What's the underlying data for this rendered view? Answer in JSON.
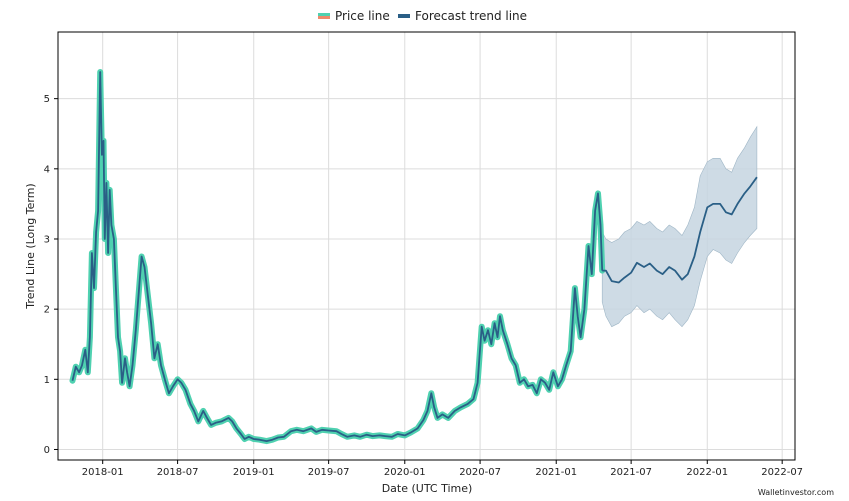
{
  "chart_data": {
    "type": "line",
    "title": "",
    "xlabel": "Date (UTC Time)",
    "ylabel": "Trend Line (Long Term)",
    "xlim": [
      "2017-09-15",
      "2022-08-01"
    ],
    "ylim": [
      -0.15,
      5.95
    ],
    "grid": true,
    "legend_position": "top-center",
    "x_ticks": [
      "2018-01",
      "2018-07",
      "2019-01",
      "2019-07",
      "2020-01",
      "2020-07",
      "2021-01",
      "2021-07",
      "2022-01",
      "2022-07"
    ],
    "y_ticks": [
      0,
      1,
      2,
      3,
      4,
      5
    ],
    "series": [
      {
        "name": "Price line",
        "legend_color": "#ef8a6a",
        "line_color": "#4fd1b0",
        "points": [
          [
            "2017-10-20",
            0.98
          ],
          [
            "2017-10-28",
            1.18
          ],
          [
            "2017-11-05",
            1.1
          ],
          [
            "2017-11-12",
            1.2
          ],
          [
            "2017-11-20",
            1.42
          ],
          [
            "2017-11-26",
            1.1
          ],
          [
            "2017-12-01",
            1.6
          ],
          [
            "2017-12-06",
            2.8
          ],
          [
            "2017-12-11",
            2.3
          ],
          [
            "2017-12-16",
            3.1
          ],
          [
            "2017-12-21",
            3.4
          ],
          [
            "2017-12-26",
            5.38
          ],
          [
            "2017-12-30",
            4.2
          ],
          [
            "2018-01-03",
            4.4
          ],
          [
            "2018-01-06",
            3.0
          ],
          [
            "2018-01-10",
            3.8
          ],
          [
            "2018-01-14",
            2.8
          ],
          [
            "2018-01-18",
            3.7
          ],
          [
            "2018-01-22",
            3.2
          ],
          [
            "2018-01-28",
            3.0
          ],
          [
            "2018-02-02",
            2.3
          ],
          [
            "2018-02-07",
            1.6
          ],
          [
            "2018-02-12",
            1.4
          ],
          [
            "2018-02-17",
            0.95
          ],
          [
            "2018-02-24",
            1.3
          ],
          [
            "2018-03-01",
            1.1
          ],
          [
            "2018-03-07",
            0.9
          ],
          [
            "2018-03-14",
            1.2
          ],
          [
            "2018-03-22",
            1.7
          ],
          [
            "2018-03-30",
            2.3
          ],
          [
            "2018-04-05",
            2.75
          ],
          [
            "2018-04-12",
            2.6
          ],
          [
            "2018-04-20",
            2.2
          ],
          [
            "2018-04-28",
            1.8
          ],
          [
            "2018-05-06",
            1.3
          ],
          [
            "2018-05-14",
            1.5
          ],
          [
            "2018-05-22",
            1.2
          ],
          [
            "2018-06-01",
            0.98
          ],
          [
            "2018-06-10",
            0.8
          ],
          [
            "2018-06-20",
            0.9
          ],
          [
            "2018-07-01",
            1.0
          ],
          [
            "2018-07-10",
            0.95
          ],
          [
            "2018-07-20",
            0.85
          ],
          [
            "2018-08-01",
            0.65
          ],
          [
            "2018-08-10",
            0.55
          ],
          [
            "2018-08-20",
            0.4
          ],
          [
            "2018-09-01",
            0.55
          ],
          [
            "2018-09-10",
            0.45
          ],
          [
            "2018-09-20",
            0.35
          ],
          [
            "2018-10-01",
            0.38
          ],
          [
            "2018-10-15",
            0.4
          ],
          [
            "2018-11-01",
            0.45
          ],
          [
            "2018-11-10",
            0.4
          ],
          [
            "2018-11-20",
            0.3
          ],
          [
            "2018-12-01",
            0.22
          ],
          [
            "2018-12-10",
            0.15
          ],
          [
            "2018-12-20",
            0.18
          ],
          [
            "2019-01-01",
            0.15
          ],
          [
            "2019-01-15",
            0.14
          ],
          [
            "2019-02-01",
            0.12
          ],
          [
            "2019-02-15",
            0.14
          ],
          [
            "2019-03-01",
            0.17
          ],
          [
            "2019-03-15",
            0.18
          ],
          [
            "2019-04-01",
            0.26
          ],
          [
            "2019-04-15",
            0.28
          ],
          [
            "2019-05-01",
            0.26
          ],
          [
            "2019-05-20",
            0.3
          ],
          [
            "2019-06-01",
            0.25
          ],
          [
            "2019-06-15",
            0.28
          ],
          [
            "2019-07-01",
            0.27
          ],
          [
            "2019-07-20",
            0.26
          ],
          [
            "2019-08-01",
            0.22
          ],
          [
            "2019-08-15",
            0.18
          ],
          [
            "2019-09-01",
            0.2
          ],
          [
            "2019-09-15",
            0.18
          ],
          [
            "2019-10-01",
            0.21
          ],
          [
            "2019-10-15",
            0.19
          ],
          [
            "2019-11-01",
            0.2
          ],
          [
            "2019-11-15",
            0.19
          ],
          [
            "2019-12-01",
            0.18
          ],
          [
            "2019-12-15",
            0.22
          ],
          [
            "2020-01-01",
            0.2
          ],
          [
            "2020-01-15",
            0.24
          ],
          [
            "2020-02-01",
            0.3
          ],
          [
            "2020-02-15",
            0.42
          ],
          [
            "2020-02-25",
            0.55
          ],
          [
            "2020-03-05",
            0.8
          ],
          [
            "2020-03-12",
            0.6
          ],
          [
            "2020-03-20",
            0.45
          ],
          [
            "2020-04-01",
            0.5
          ],
          [
            "2020-04-15",
            0.45
          ],
          [
            "2020-05-01",
            0.55
          ],
          [
            "2020-05-15",
            0.6
          ],
          [
            "2020-06-01",
            0.65
          ],
          [
            "2020-06-15",
            0.72
          ],
          [
            "2020-06-25",
            0.95
          ],
          [
            "2020-07-05",
            1.75
          ],
          [
            "2020-07-12",
            1.55
          ],
          [
            "2020-07-20",
            1.7
          ],
          [
            "2020-07-28",
            1.5
          ],
          [
            "2020-08-05",
            1.8
          ],
          [
            "2020-08-12",
            1.6
          ],
          [
            "2020-08-18",
            1.9
          ],
          [
            "2020-08-25",
            1.7
          ],
          [
            "2020-09-05",
            1.5
          ],
          [
            "2020-09-15",
            1.3
          ],
          [
            "2020-09-25",
            1.2
          ],
          [
            "2020-10-05",
            0.95
          ],
          [
            "2020-10-15",
            1.0
          ],
          [
            "2020-10-25",
            0.9
          ],
          [
            "2020-11-05",
            0.92
          ],
          [
            "2020-11-15",
            0.8
          ],
          [
            "2020-11-25",
            1.0
          ],
          [
            "2020-12-05",
            0.95
          ],
          [
            "2020-12-15",
            0.85
          ],
          [
            "2020-12-25",
            1.1
          ],
          [
            "2021-01-05",
            0.9
          ],
          [
            "2021-01-15",
            1.0
          ],
          [
            "2021-01-25",
            1.2
          ],
          [
            "2021-02-05",
            1.4
          ],
          [
            "2021-02-15",
            2.3
          ],
          [
            "2021-02-22",
            1.9
          ],
          [
            "2021-03-01",
            1.6
          ],
          [
            "2021-03-10",
            2.0
          ],
          [
            "2021-03-20",
            2.9
          ],
          [
            "2021-03-28",
            2.5
          ],
          [
            "2021-04-05",
            3.4
          ],
          [
            "2021-04-12",
            3.65
          ],
          [
            "2021-04-18",
            3.2
          ],
          [
            "2021-04-22",
            2.55
          ]
        ]
      },
      {
        "name": "Forecast trend line",
        "line_color": "#2a5f86",
        "band_color": "#c5d5e0",
        "points": [
          [
            "2021-04-22",
            2.55
          ],
          [
            "2021-05-01",
            2.55
          ],
          [
            "2021-05-15",
            2.4
          ],
          [
            "2021-06-01",
            2.38
          ],
          [
            "2021-06-15",
            2.45
          ],
          [
            "2021-07-01",
            2.52
          ],
          [
            "2021-07-15",
            2.66
          ],
          [
            "2021-08-01",
            2.6
          ],
          [
            "2021-08-15",
            2.65
          ],
          [
            "2021-09-01",
            2.55
          ],
          [
            "2021-09-15",
            2.5
          ],
          [
            "2021-10-01",
            2.6
          ],
          [
            "2021-10-15",
            2.55
          ],
          [
            "2021-11-01",
            2.42
          ],
          [
            "2021-11-15",
            2.5
          ],
          [
            "2021-12-01",
            2.75
          ],
          [
            "2021-12-15",
            3.1
          ],
          [
            "2022-01-01",
            3.45
          ],
          [
            "2022-01-15",
            3.5
          ],
          [
            "2022-02-01",
            3.5
          ],
          [
            "2022-02-15",
            3.38
          ],
          [
            "2022-03-01",
            3.35
          ],
          [
            "2022-03-15",
            3.5
          ],
          [
            "2022-04-01",
            3.65
          ],
          [
            "2022-04-15",
            3.75
          ],
          [
            "2022-05-01",
            3.88
          ]
        ],
        "lower": [
          [
            "2021-04-22",
            2.1
          ],
          [
            "2021-05-01",
            1.9
          ],
          [
            "2021-05-15",
            1.75
          ],
          [
            "2021-06-01",
            1.8
          ],
          [
            "2021-06-15",
            1.9
          ],
          [
            "2021-07-01",
            1.95
          ],
          [
            "2021-07-15",
            2.05
          ],
          [
            "2021-08-01",
            1.95
          ],
          [
            "2021-08-15",
            2.0
          ],
          [
            "2021-09-01",
            1.9
          ],
          [
            "2021-09-15",
            1.85
          ],
          [
            "2021-10-01",
            1.95
          ],
          [
            "2021-10-15",
            1.85
          ],
          [
            "2021-11-01",
            1.75
          ],
          [
            "2021-11-15",
            1.85
          ],
          [
            "2021-12-01",
            2.05
          ],
          [
            "2021-12-15",
            2.4
          ],
          [
            "2022-01-01",
            2.75
          ],
          [
            "2022-01-15",
            2.85
          ],
          [
            "2022-02-01",
            2.8
          ],
          [
            "2022-02-15",
            2.7
          ],
          [
            "2022-03-01",
            2.65
          ],
          [
            "2022-03-15",
            2.8
          ],
          [
            "2022-04-01",
            2.95
          ],
          [
            "2022-04-15",
            3.05
          ],
          [
            "2022-05-01",
            3.15
          ]
        ],
        "upper": [
          [
            "2021-04-22",
            3.1
          ],
          [
            "2021-05-01",
            3.0
          ],
          [
            "2021-05-15",
            2.95
          ],
          [
            "2021-06-01",
            3.0
          ],
          [
            "2021-06-15",
            3.1
          ],
          [
            "2021-07-01",
            3.15
          ],
          [
            "2021-07-15",
            3.25
          ],
          [
            "2021-08-01",
            3.2
          ],
          [
            "2021-08-15",
            3.25
          ],
          [
            "2021-09-01",
            3.15
          ],
          [
            "2021-09-15",
            3.1
          ],
          [
            "2021-10-01",
            3.2
          ],
          [
            "2021-10-15",
            3.15
          ],
          [
            "2021-11-01",
            3.05
          ],
          [
            "2021-11-15",
            3.2
          ],
          [
            "2021-12-01",
            3.45
          ],
          [
            "2021-12-15",
            3.9
          ],
          [
            "2022-01-01",
            4.1
          ],
          [
            "2022-01-15",
            4.15
          ],
          [
            "2022-02-01",
            4.15
          ],
          [
            "2022-02-15",
            4.0
          ],
          [
            "2022-03-01",
            3.95
          ],
          [
            "2022-03-15",
            4.15
          ],
          [
            "2022-04-01",
            4.3
          ],
          [
            "2022-04-15",
            4.45
          ],
          [
            "2022-05-01",
            4.6
          ]
        ]
      }
    ]
  },
  "watermark": "Walletinvestor.com"
}
